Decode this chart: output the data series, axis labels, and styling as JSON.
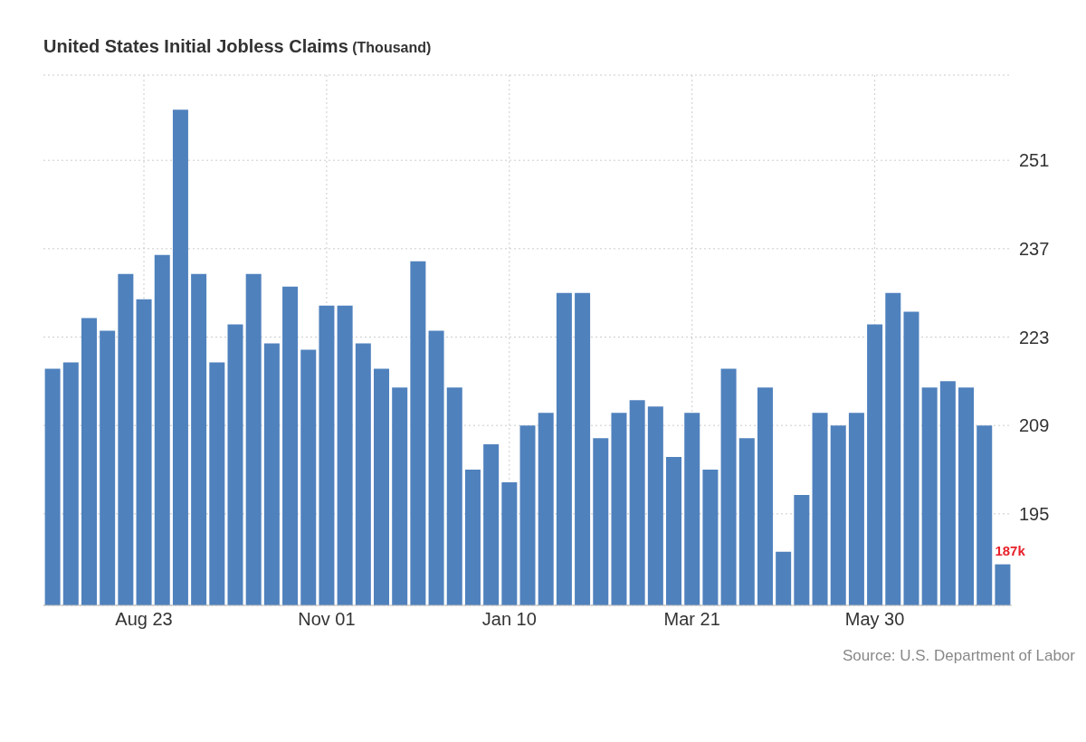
{
  "chart_data": {
    "type": "bar",
    "title": "United States Initial Jobless Claims",
    "subtitle": "(Thousand)",
    "categories": [
      null,
      null,
      null,
      null,
      null,
      "Aug 23",
      null,
      null,
      null,
      null,
      null,
      null,
      null,
      null,
      null,
      "Nov 01",
      null,
      null,
      null,
      null,
      null,
      null,
      null,
      null,
      null,
      "Jan 10",
      null,
      null,
      null,
      null,
      null,
      null,
      null,
      null,
      null,
      "Mar 21",
      null,
      null,
      null,
      null,
      null,
      null,
      null,
      null,
      null,
      "May 30",
      null,
      null,
      null,
      null,
      null,
      null,
      null
    ],
    "values": [
      218,
      219,
      226,
      224,
      233,
      229,
      236,
      259,
      233,
      219,
      225,
      233,
      222,
      231,
      221,
      228,
      228,
      222,
      218,
      215,
      235,
      224,
      215,
      202,
      206,
      200,
      209,
      211,
      230,
      230,
      207,
      211,
      213,
      212,
      204,
      211,
      202,
      218,
      207,
      215,
      189,
      198,
      211,
      209,
      211,
      225,
      230,
      227,
      215,
      216,
      215,
      209,
      187
    ],
    "value_labels": [
      null,
      null,
      null,
      null,
      null,
      null,
      null,
      null,
      null,
      null,
      null,
      null,
      null,
      null,
      null,
      null,
      null,
      null,
      null,
      null,
      null,
      null,
      null,
      null,
      null,
      null,
      null,
      null,
      null,
      null,
      null,
      null,
      null,
      null,
      null,
      null,
      null,
      null,
      null,
      null,
      null,
      null,
      null,
      null,
      null,
      null,
      null,
      null,
      null,
      null,
      null,
      null,
      "187k"
    ],
    "color": "#4f81bd",
    "ylim": [
      180.5,
      264.5
    ],
    "yticks": [
      195,
      209,
      223,
      237,
      251
    ],
    "grid": true,
    "annotations": [
      "Source: U.S. Department of Labor"
    ]
  }
}
